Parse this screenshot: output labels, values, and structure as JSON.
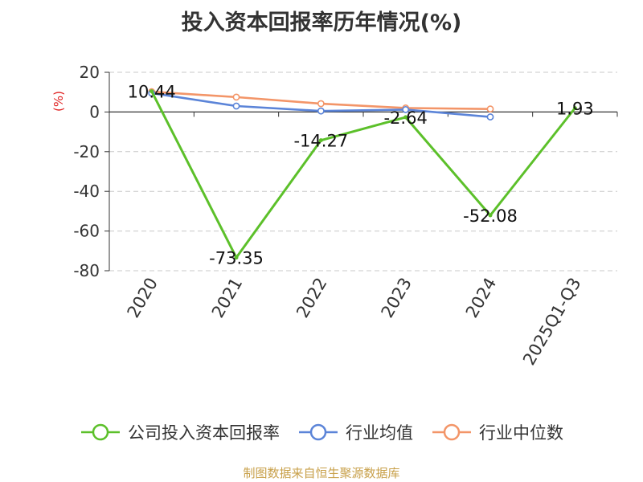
{
  "title": "投入资本回报率历年情况(%)",
  "source": "制图数据来自恒生聚源数据库",
  "chart_data": {
    "type": "line",
    "title": "投入资本回报率历年情况(%)",
    "ylabel": "(%)",
    "ylim": [
      -80,
      20
    ],
    "yticks": [
      20,
      0,
      -20,
      -40,
      -60,
      -80
    ],
    "categories": [
      "2020",
      "2021",
      "2022",
      "2023",
      "2024",
      "2025Q1-Q3"
    ],
    "grid": true,
    "legend_position": "bottom",
    "series": [
      {
        "name": "公司投入资本回报率",
        "color": "#5cc02a",
        "values": [
          10.44,
          -73.35,
          -14.27,
          -2.64,
          -52.08,
          1.93
        ],
        "labels": [
          "10.44",
          "-73.35",
          "-14.27",
          "-2.64",
          "-52.08",
          "1.93"
        ]
      },
      {
        "name": "行业均值",
        "color": "#5b84d8",
        "values": [
          9.5,
          3.0,
          0.5,
          1.2,
          -2.5,
          null
        ]
      },
      {
        "name": "行业中位数",
        "color": "#f39568",
        "values": [
          10.2,
          7.5,
          4.2,
          2.0,
          1.5,
          null
        ]
      }
    ]
  }
}
